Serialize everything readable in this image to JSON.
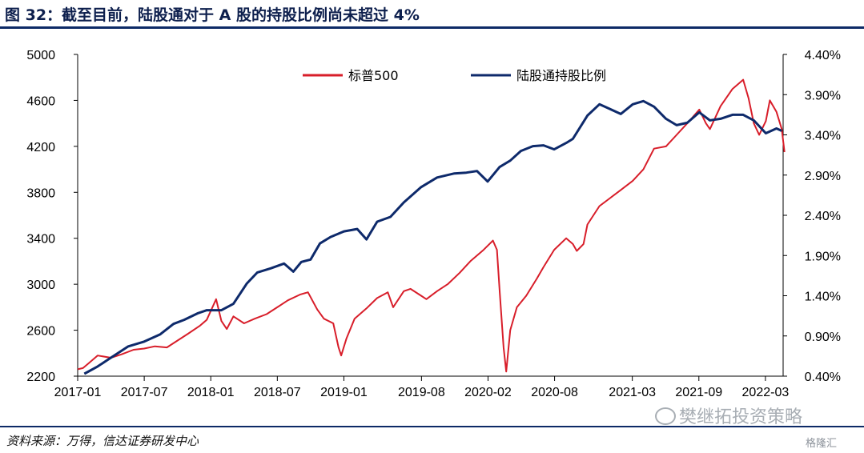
{
  "title": "图 32：截至目前，陆股通对于 A 股的持股比例尚未超过 4%",
  "source": "资料来源：万得，信达证券研发中心",
  "watermark": "樊继拓投资策略",
  "corner_logo": "格隆汇",
  "colors": {
    "sp500": "#d81e2a",
    "ratio": "#0e2a6b",
    "title": "#0d1f4d",
    "rule": "#0d2a66"
  },
  "chart_data": {
    "type": "line",
    "x_tick_labels": [
      "2017-01",
      "2017-07",
      "2018-01",
      "2018-07",
      "2019-01",
      "2019-08",
      "2020-02",
      "2020-08",
      "2021-03",
      "2021-09",
      "2022-03"
    ],
    "x_ticks": [
      2017.0,
      2017.5,
      2018.0,
      2018.5,
      2019.0,
      2019.583,
      2020.083,
      2020.583,
      2021.167,
      2021.667,
      2022.167
    ],
    "x_range": [
      2017.0,
      2022.3
    ],
    "left_axis": {
      "ticks": [
        2200,
        2600,
        3000,
        3400,
        3800,
        4200,
        4600,
        5000
      ],
      "ylim": [
        2200,
        5000
      ]
    },
    "right_axis": {
      "ticks": [
        "0.40%",
        "0.90%",
        "1.40%",
        "1.90%",
        "2.40%",
        "2.90%",
        "3.40%",
        "3.90%",
        "4.40%"
      ],
      "ylim": [
        0.4,
        4.4
      ]
    },
    "legend_position": "top",
    "series": [
      {
        "name": "标普500",
        "axis": "left",
        "points": [
          [
            2017.0,
            2260
          ],
          [
            2017.04,
            2270
          ],
          [
            2017.08,
            2310
          ],
          [
            2017.15,
            2380
          ],
          [
            2017.25,
            2360
          ],
          [
            2017.33,
            2390
          ],
          [
            2017.42,
            2430
          ],
          [
            2017.5,
            2440
          ],
          [
            2017.58,
            2460
          ],
          [
            2017.67,
            2450
          ],
          [
            2017.75,
            2510
          ],
          [
            2017.83,
            2570
          ],
          [
            2017.92,
            2640
          ],
          [
            2017.97,
            2690
          ],
          [
            2018.04,
            2870
          ],
          [
            2018.08,
            2680
          ],
          [
            2018.12,
            2610
          ],
          [
            2018.17,
            2720
          ],
          [
            2018.25,
            2660
          ],
          [
            2018.33,
            2700
          ],
          [
            2018.42,
            2740
          ],
          [
            2018.5,
            2800
          ],
          [
            2018.58,
            2860
          ],
          [
            2018.67,
            2910
          ],
          [
            2018.73,
            2930
          ],
          [
            2018.8,
            2780
          ],
          [
            2018.85,
            2700
          ],
          [
            2018.92,
            2660
          ],
          [
            2018.96,
            2450
          ],
          [
            2018.98,
            2380
          ],
          [
            2019.02,
            2530
          ],
          [
            2019.08,
            2700
          ],
          [
            2019.17,
            2790
          ],
          [
            2019.25,
            2880
          ],
          [
            2019.33,
            2930
          ],
          [
            2019.37,
            2800
          ],
          [
            2019.45,
            2940
          ],
          [
            2019.5,
            2960
          ],
          [
            2019.58,
            2900
          ],
          [
            2019.62,
            2870
          ],
          [
            2019.7,
            2940
          ],
          [
            2019.78,
            3000
          ],
          [
            2019.87,
            3100
          ],
          [
            2019.95,
            3200
          ],
          [
            2020.05,
            3300
          ],
          [
            2020.12,
            3380
          ],
          [
            2020.15,
            3300
          ],
          [
            2020.17,
            2950
          ],
          [
            2020.2,
            2450
          ],
          [
            2020.22,
            2240
          ],
          [
            2020.25,
            2600
          ],
          [
            2020.3,
            2800
          ],
          [
            2020.37,
            2900
          ],
          [
            2020.45,
            3050
          ],
          [
            2020.5,
            3150
          ],
          [
            2020.58,
            3300
          ],
          [
            2020.67,
            3400
          ],
          [
            2020.72,
            3350
          ],
          [
            2020.75,
            3290
          ],
          [
            2020.8,
            3350
          ],
          [
            2020.83,
            3520
          ],
          [
            2020.92,
            3680
          ],
          [
            2021.0,
            3750
          ],
          [
            2021.08,
            3820
          ],
          [
            2021.17,
            3900
          ],
          [
            2021.25,
            4000
          ],
          [
            2021.33,
            4180
          ],
          [
            2021.42,
            4200
          ],
          [
            2021.5,
            4300
          ],
          [
            2021.58,
            4400
          ],
          [
            2021.67,
            4520
          ],
          [
            2021.72,
            4400
          ],
          [
            2021.75,
            4350
          ],
          [
            2021.83,
            4550
          ],
          [
            2021.92,
            4700
          ],
          [
            2022.0,
            4780
          ],
          [
            2022.04,
            4620
          ],
          [
            2022.08,
            4400
          ],
          [
            2022.12,
            4300
          ],
          [
            2022.17,
            4420
          ],
          [
            2022.2,
            4600
          ],
          [
            2022.25,
            4500
          ],
          [
            2022.29,
            4350
          ],
          [
            2022.31,
            4150
          ]
        ]
      },
      {
        "name": "陆股通持股比例",
        "axis": "right",
        "points": [
          [
            2017.05,
            0.43
          ],
          [
            2017.15,
            0.52
          ],
          [
            2017.25,
            0.63
          ],
          [
            2017.38,
            0.77
          ],
          [
            2017.5,
            0.83
          ],
          [
            2017.62,
            0.92
          ],
          [
            2017.72,
            1.05
          ],
          [
            2017.8,
            1.1
          ],
          [
            2017.9,
            1.18
          ],
          [
            2017.97,
            1.22
          ],
          [
            2018.08,
            1.22
          ],
          [
            2018.17,
            1.3
          ],
          [
            2018.27,
            1.55
          ],
          [
            2018.35,
            1.69
          ],
          [
            2018.45,
            1.74
          ],
          [
            2018.55,
            1.8
          ],
          [
            2018.62,
            1.7
          ],
          [
            2018.68,
            1.82
          ],
          [
            2018.75,
            1.85
          ],
          [
            2018.82,
            2.05
          ],
          [
            2018.9,
            2.13
          ],
          [
            2019.0,
            2.2
          ],
          [
            2019.1,
            2.23
          ],
          [
            2019.17,
            2.1
          ],
          [
            2019.25,
            2.32
          ],
          [
            2019.35,
            2.38
          ],
          [
            2019.45,
            2.56
          ],
          [
            2019.58,
            2.75
          ],
          [
            2019.7,
            2.87
          ],
          [
            2019.83,
            2.92
          ],
          [
            2019.92,
            2.93
          ],
          [
            2020.0,
            2.95
          ],
          [
            2020.08,
            2.82
          ],
          [
            2020.17,
            3.0
          ],
          [
            2020.25,
            3.08
          ],
          [
            2020.33,
            3.2
          ],
          [
            2020.42,
            3.26
          ],
          [
            2020.5,
            3.27
          ],
          [
            2020.58,
            3.22
          ],
          [
            2020.67,
            3.3
          ],
          [
            2020.72,
            3.35
          ],
          [
            2020.83,
            3.64
          ],
          [
            2020.92,
            3.78
          ],
          [
            2021.0,
            3.72
          ],
          [
            2021.08,
            3.66
          ],
          [
            2021.17,
            3.78
          ],
          [
            2021.25,
            3.82
          ],
          [
            2021.33,
            3.75
          ],
          [
            2021.42,
            3.6
          ],
          [
            2021.5,
            3.52
          ],
          [
            2021.58,
            3.55
          ],
          [
            2021.67,
            3.68
          ],
          [
            2021.75,
            3.58
          ],
          [
            2021.83,
            3.6
          ],
          [
            2021.92,
            3.65
          ],
          [
            2022.0,
            3.65
          ],
          [
            2022.08,
            3.58
          ],
          [
            2022.17,
            3.42
          ],
          [
            2022.25,
            3.48
          ],
          [
            2022.29,
            3.45
          ]
        ]
      }
    ]
  }
}
